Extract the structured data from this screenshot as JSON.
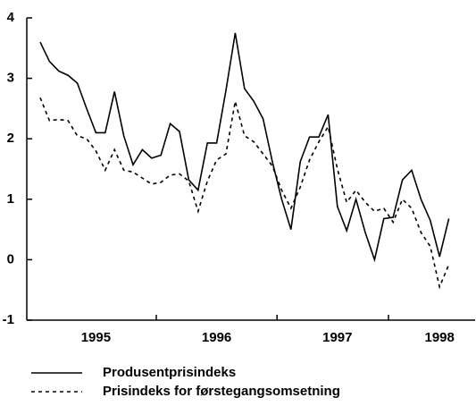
{
  "chart_data": {
    "type": "line",
    "categories": [
      null,
      null,
      null,
      null,
      null,
      null,
      "1995",
      null,
      null,
      null,
      null,
      null,
      null,
      null,
      null,
      null,
      null,
      null,
      null,
      "1996",
      null,
      null,
      null,
      null,
      null,
      null,
      null,
      null,
      null,
      null,
      null,
      null,
      "1997",
      null,
      null,
      null,
      null,
      null,
      null,
      null,
      null,
      null,
      null,
      "1998",
      null
    ],
    "series": [
      {
        "name": "Produsentprisindeks",
        "color": "#000000",
        "dash": "solid",
        "values": [
          3.6,
          3.28,
          3.12,
          3.05,
          2.92,
          2.5,
          2.1,
          2.1,
          2.78,
          2.05,
          1.57,
          1.82,
          1.68,
          1.73,
          2.25,
          2.12,
          1.32,
          1.15,
          1.93,
          1.93,
          2.8,
          3.75,
          2.83,
          2.62,
          2.33,
          1.62,
          1.0,
          0.5,
          1.62,
          2.03,
          2.03,
          2.4,
          0.88,
          0.48,
          1.0,
          0.45,
          0.0,
          0.68,
          0.7,
          1.32,
          1.48,
          1.0,
          0.65,
          0.05,
          0.68
        ]
      },
      {
        "name": "Prisindeks for førstegangsomsetning",
        "color": "#000000",
        "dash": "dotted",
        "values": [
          2.68,
          2.3,
          2.32,
          2.3,
          2.05,
          2.0,
          1.8,
          1.48,
          1.82,
          1.48,
          1.45,
          1.35,
          1.25,
          1.28,
          1.4,
          1.42,
          1.3,
          0.8,
          1.3,
          1.65,
          1.75,
          2.62,
          2.05,
          1.95,
          1.75,
          1.55,
          1.15,
          0.85,
          1.2,
          1.65,
          1.95,
          2.2,
          1.5,
          0.95,
          1.15,
          0.95,
          0.8,
          0.85,
          0.62,
          1.0,
          0.85,
          0.45,
          0.22,
          -0.45,
          -0.08
        ]
      }
    ],
    "ylim": [
      -1,
      4
    ],
    "yticks": [
      -1,
      0,
      1,
      2,
      3,
      4
    ]
  }
}
